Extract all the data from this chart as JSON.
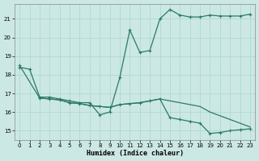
{
  "xlabel": "Humidex (Indice chaleur)",
  "background_color": "#cce8e4",
  "grid_color": "#aad4cc",
  "line_color": "#2a7a6a",
  "xlim": [
    -0.5,
    23.5
  ],
  "ylim": [
    14.5,
    21.8
  ],
  "yticks": [
    15,
    16,
    17,
    18,
    19,
    20,
    21
  ],
  "xticks": [
    0,
    1,
    2,
    3,
    4,
    5,
    6,
    7,
    8,
    9,
    10,
    11,
    12,
    13,
    14,
    15,
    16,
    17,
    18,
    19,
    20,
    21,
    22,
    23
  ],
  "curve1_x": [
    0,
    1,
    2,
    3,
    4,
    5,
    6,
    7,
    8,
    9,
    10,
    11,
    12,
    13,
    14,
    15,
    16,
    17,
    18,
    19,
    20,
    21,
    22,
    23
  ],
  "curve1_y": [
    18.4,
    18.3,
    16.8,
    16.8,
    16.7,
    16.6,
    16.5,
    16.5,
    15.85,
    16.0,
    17.85,
    20.4,
    19.2,
    19.3,
    21.0,
    21.5,
    21.2,
    21.1,
    21.1,
    21.2,
    21.15,
    21.15,
    21.15,
    21.25
  ],
  "curve2_x": [
    0,
    2,
    3,
    4,
    5,
    6,
    7,
    8,
    9,
    10,
    11,
    12,
    13,
    14,
    15,
    16,
    17,
    18,
    19,
    20,
    21,
    22,
    23
  ],
  "curve2_y": [
    18.5,
    16.75,
    16.7,
    16.65,
    16.5,
    16.45,
    16.35,
    16.3,
    16.25,
    16.4,
    16.45,
    16.5,
    16.6,
    16.7,
    15.7,
    15.6,
    15.5,
    15.4,
    14.85,
    14.9,
    15.0,
    15.05,
    15.1
  ],
  "curve3_x": [
    2,
    3,
    4,
    5,
    6,
    7,
    8,
    9,
    10,
    11,
    12,
    13,
    14,
    15,
    16,
    17,
    18,
    19,
    20,
    21,
    22,
    23
  ],
  "curve3_y": [
    16.75,
    16.7,
    16.65,
    16.5,
    16.45,
    16.35,
    16.3,
    16.25,
    16.4,
    16.45,
    16.5,
    16.6,
    16.7,
    16.6,
    16.5,
    16.4,
    16.3,
    16.0,
    15.8,
    15.6,
    15.4,
    15.2
  ]
}
